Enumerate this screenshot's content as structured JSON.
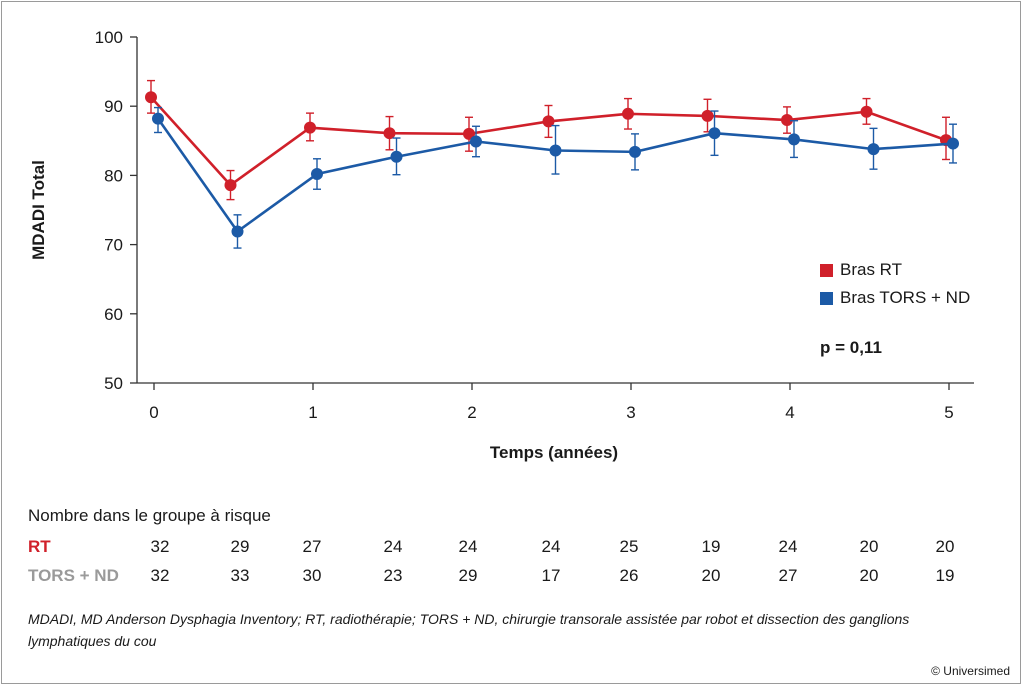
{
  "chart_data": {
    "type": "line",
    "xlabel": "Temps (années)",
    "ylabel": "MDADI Total",
    "xlim": [
      0,
      5
    ],
    "ylim": [
      50,
      100
    ],
    "xticks": [
      0,
      1,
      2,
      3,
      4,
      5
    ],
    "yticks": [
      50,
      60,
      70,
      80,
      90,
      100
    ],
    "x": [
      0,
      0.5,
      1,
      1.5,
      2,
      2.5,
      3,
      3.5,
      4,
      4.5,
      5
    ],
    "series": [
      {
        "name": "Bras RT",
        "color": "#d0202a",
        "values": [
          91.3,
          78.6,
          86.9,
          86.1,
          86.0,
          87.8,
          88.9,
          88.6,
          88.0,
          89.2,
          85.1
        ],
        "err_low": [
          89.0,
          76.5,
          85.0,
          83.7,
          83.5,
          85.5,
          86.7,
          86.3,
          86.1,
          87.4,
          82.3
        ],
        "err_high": [
          93.7,
          80.7,
          89.0,
          88.5,
          88.4,
          90.1,
          91.1,
          91.0,
          89.9,
          91.1,
          88.4
        ]
      },
      {
        "name": "Bras TORS + ND",
        "color": "#1c5aa6",
        "values": [
          88.2,
          71.9,
          80.2,
          82.7,
          84.9,
          83.6,
          83.4,
          86.1,
          85.2,
          83.8,
          84.6
        ],
        "err_low": [
          86.2,
          69.5,
          78.0,
          80.1,
          82.7,
          80.2,
          80.8,
          82.9,
          82.6,
          80.9,
          81.8
        ],
        "err_high": [
          89.8,
          74.3,
          82.4,
          85.4,
          87.1,
          87.2,
          86.0,
          89.3,
          87.9,
          86.8,
          87.4
        ]
      }
    ],
    "legend": {
      "position": "right",
      "items": [
        "Bras RT",
        "Bras TORS + ND"
      ]
    },
    "annotation": "p = 0,11"
  },
  "risk_table": {
    "title": "Nombre dans le groupe à risque",
    "rows": [
      {
        "label": "RT",
        "color": "#d0202a",
        "values": [
          "32",
          "29",
          "27",
          "24",
          "24",
          "24",
          "25",
          "19",
          "24",
          "20",
          "20"
        ]
      },
      {
        "label": "TORS + ND",
        "color": "#9a9a9a",
        "values": [
          "32",
          "33",
          "30",
          "23",
          "29",
          "17",
          "26",
          "20",
          "27",
          "20",
          "19"
        ]
      }
    ]
  },
  "footnote": "MDADI, MD Anderson Dysphagia Inventory; RT, radiothérapie; TORS + ND, chirurgie transorale assistée par robot et dissection des ganglions lymphatiques du cou",
  "copyright": "© Universimed"
}
